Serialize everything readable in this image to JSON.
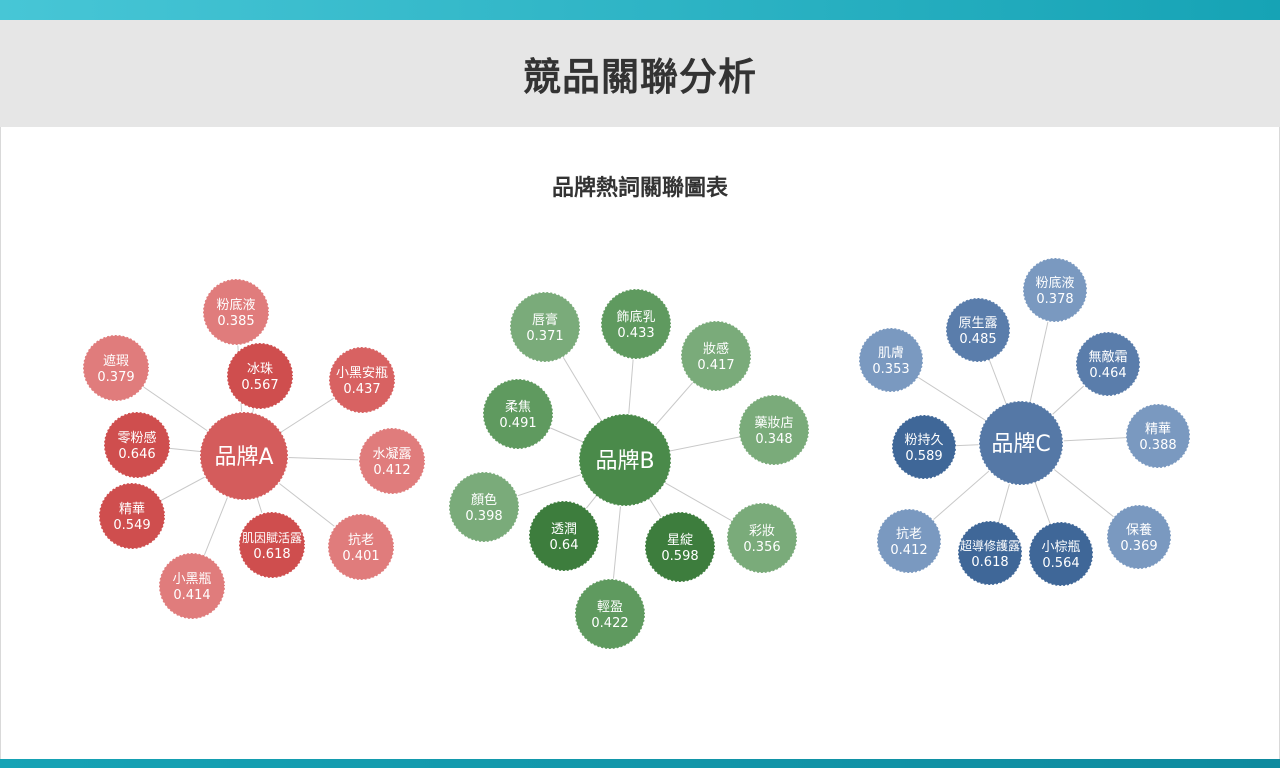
{
  "header": {
    "title": "競品關聯分析"
  },
  "chart_title": "品牌熱詞關聯圖表",
  "colors": {
    "A": {
      "hub": "#d45c5c",
      "strong": "#cf4e4e",
      "medium": "#d86262",
      "light": "#e07c7c"
    },
    "B": {
      "hub": "#4a8a4a",
      "strong": "#3d7d3d",
      "medium": "#5f9a5f",
      "light": "#7aab7a"
    },
    "C": {
      "hub": "#5578a6",
      "strong": "#3f6798",
      "medium": "#5a7dab",
      "light": "#7a99c0"
    }
  },
  "clusters": [
    {
      "id": "A",
      "hub_label": "品牌A",
      "keywords": [
        {
          "label": "粉底液",
          "value": "0.385"
        },
        {
          "label": "冰珠",
          "value": "0.567"
        },
        {
          "label": "小黑安瓶",
          "value": "0.437"
        },
        {
          "label": "遮瑕",
          "value": "0.379"
        },
        {
          "label": "零粉感",
          "value": "0.646"
        },
        {
          "label": "水凝露",
          "value": "0.412"
        },
        {
          "label": "精華",
          "value": "0.549"
        },
        {
          "label": "肌因賦活露",
          "value": "0.618"
        },
        {
          "label": "抗老",
          "value": "0.401"
        },
        {
          "label": "小黑瓶",
          "value": "0.414"
        }
      ]
    },
    {
      "id": "B",
      "hub_label": "品牌B",
      "keywords": [
        {
          "label": "唇膏",
          "value": "0.371"
        },
        {
          "label": "飾底乳",
          "value": "0.433"
        },
        {
          "label": "妝感",
          "value": "0.417"
        },
        {
          "label": "柔焦",
          "value": "0.491"
        },
        {
          "label": "藥妝店",
          "value": "0.348"
        },
        {
          "label": "顏色",
          "value": "0.398"
        },
        {
          "label": "透潤",
          "value": "0.64"
        },
        {
          "label": "星綻",
          "value": "0.598"
        },
        {
          "label": "彩妝",
          "value": "0.356"
        },
        {
          "label": "輕盈",
          "value": "0.422"
        }
      ]
    },
    {
      "id": "C",
      "hub_label": "品牌C",
      "keywords": [
        {
          "label": "粉底液",
          "value": "0.378"
        },
        {
          "label": "原生露",
          "value": "0.485"
        },
        {
          "label": "肌膚",
          "value": "0.353"
        },
        {
          "label": "無敵霜",
          "value": "0.464"
        },
        {
          "label": "粉持久",
          "value": "0.589"
        },
        {
          "label": "精華",
          "value": "0.388"
        },
        {
          "label": "抗老",
          "value": "0.412"
        },
        {
          "label": "超導修護露",
          "value": "0.618"
        },
        {
          "label": "小棕瓶",
          "value": "0.564"
        },
        {
          "label": "保養",
          "value": "0.369"
        }
      ]
    }
  ]
}
